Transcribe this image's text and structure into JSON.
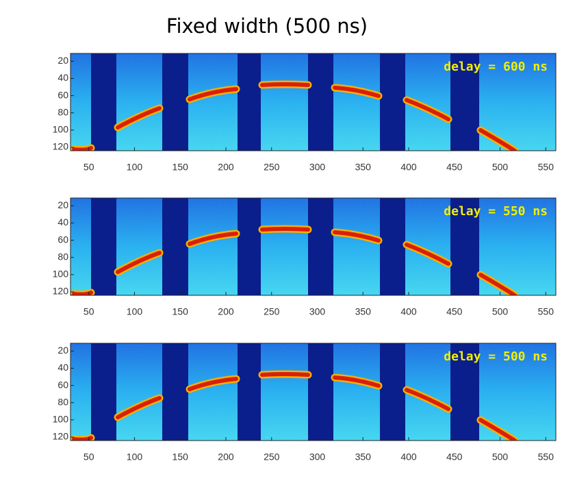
{
  "chart_data": [
    {
      "type": "image",
      "title": "Fixed width (500 ns)",
      "annotation": "delay = 600 ns",
      "xlim": [
        30,
        561
      ],
      "xticks": [
        50,
        100,
        150,
        200,
        250,
        300,
        350,
        400,
        450,
        500,
        550
      ],
      "ylim": [
        124,
        11
      ],
      "yticks": [
        20,
        40,
        60,
        80,
        100,
        120
      ]
    },
    {
      "type": "image",
      "annotation": "delay = 550 ns",
      "xlim": [
        30,
        561
      ],
      "xticks": [
        50,
        100,
        150,
        200,
        250,
        300,
        350,
        400,
        450,
        500,
        550
      ],
      "ylim": [
        124,
        11
      ],
      "yticks": [
        20,
        40,
        60,
        80,
        100,
        120
      ]
    },
    {
      "type": "image",
      "annotation": "delay = 500 ns",
      "xlim": [
        30,
        561
      ],
      "xticks": [
        50,
        100,
        150,
        200,
        250,
        300,
        350,
        400,
        450,
        500,
        550
      ],
      "ylim": [
        124,
        11
      ],
      "yticks": [
        20,
        40,
        60,
        80,
        100,
        120
      ]
    }
  ]
}
